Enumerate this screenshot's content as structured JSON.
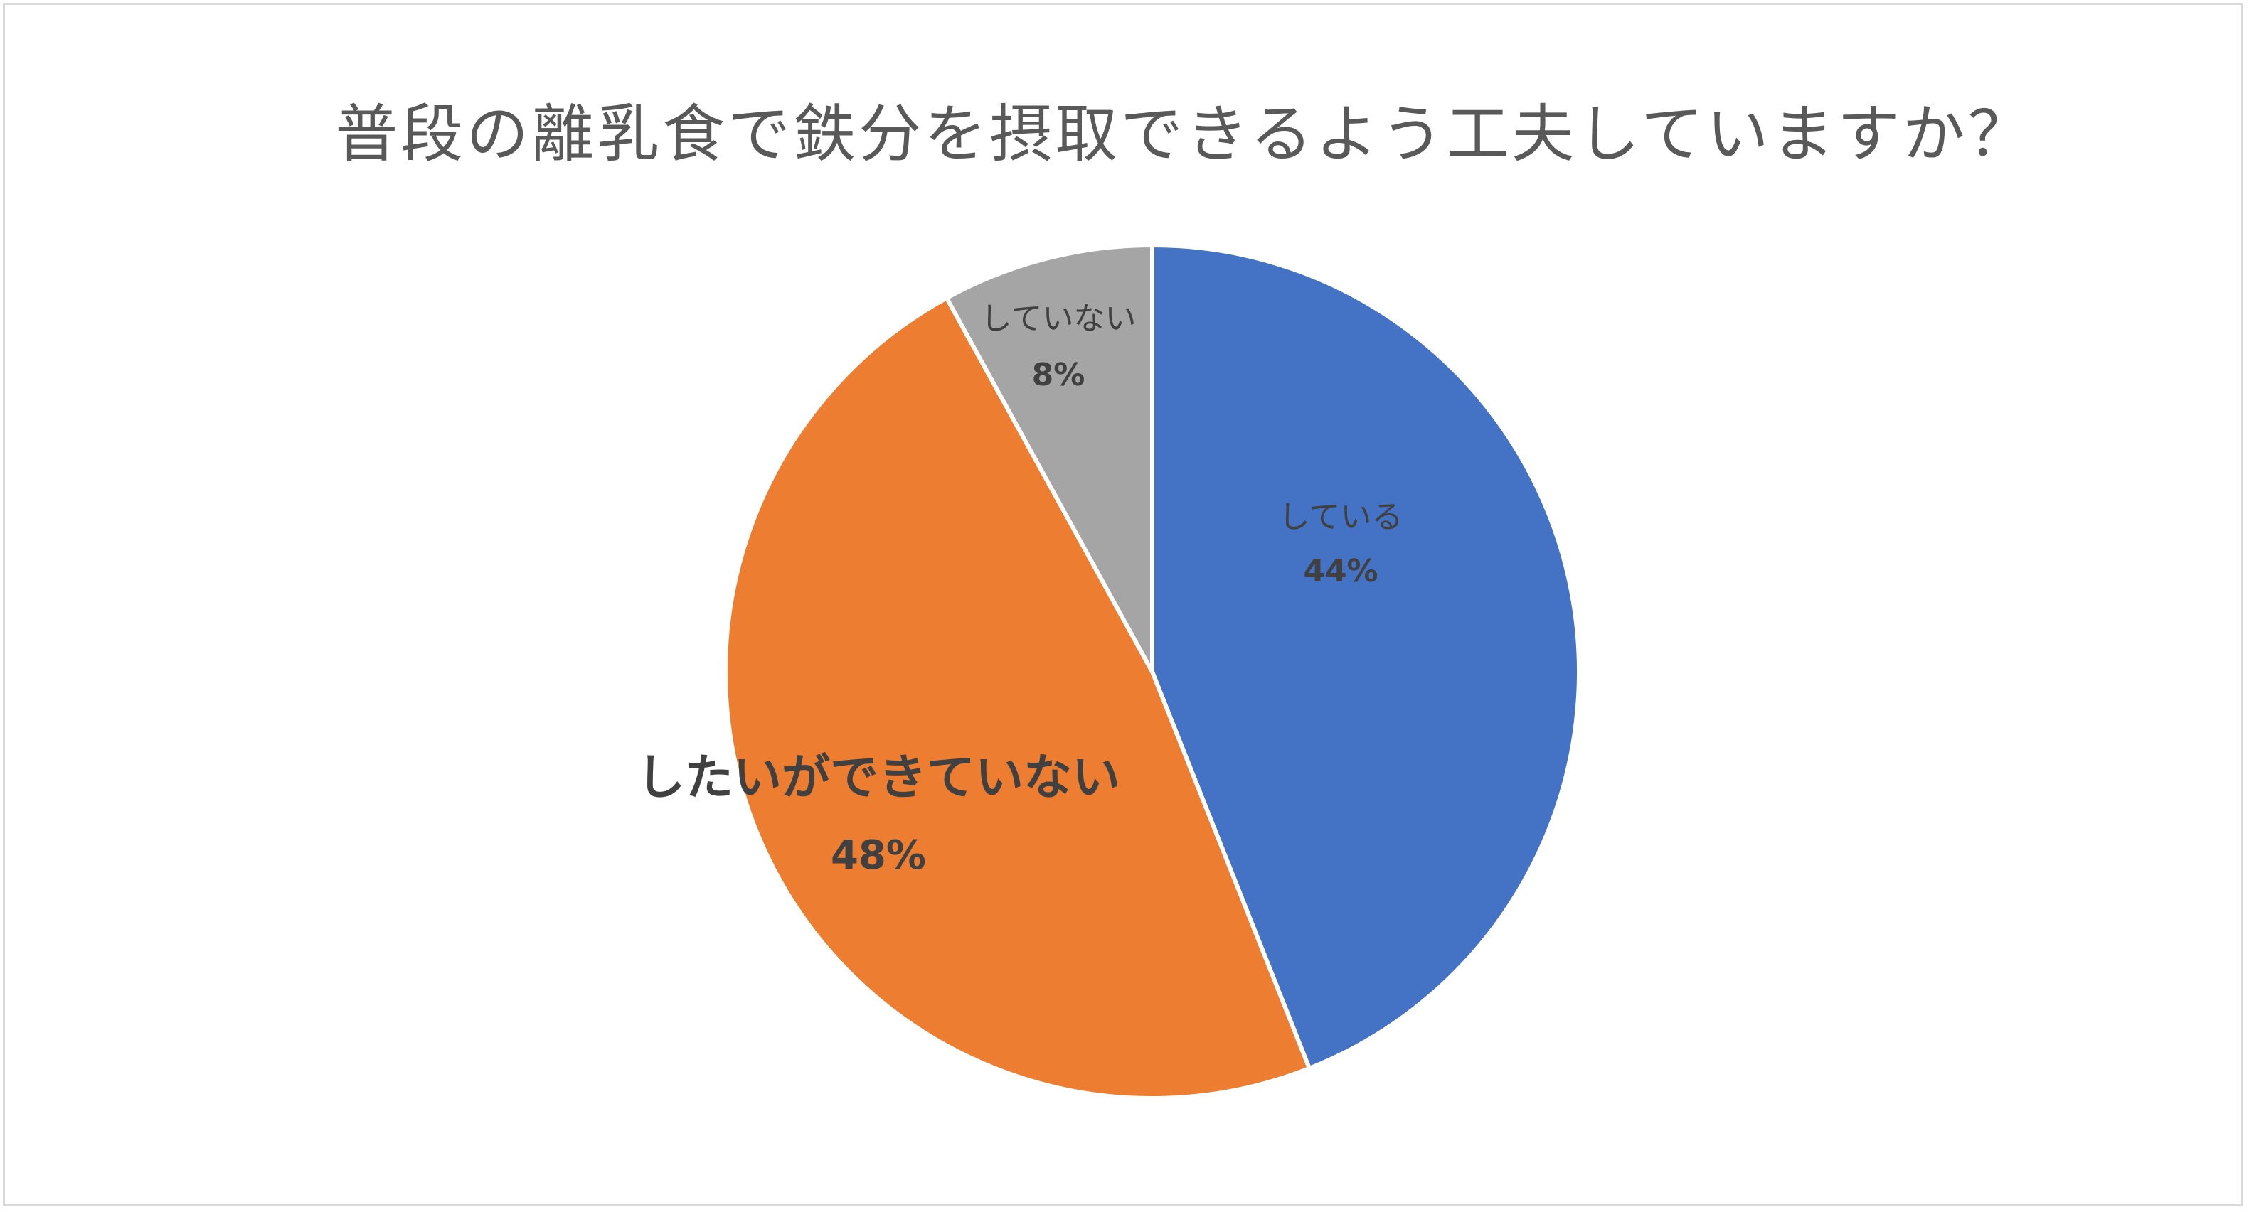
{
  "chart_data": {
    "type": "pie",
    "title": "普段の離乳食で鉄分を摂取できるよう工夫していますか？",
    "slices": [
      {
        "label": "している",
        "value": 44,
        "value_label": "44%",
        "color": "#4472C4"
      },
      {
        "label": "したいができていない",
        "value": 48,
        "value_label": "48%",
        "color": "#ED7D31"
      },
      {
        "label": "していない",
        "value": 8,
        "value_label": "8%",
        "color": "#A5A5A5"
      }
    ],
    "legend": "none"
  }
}
